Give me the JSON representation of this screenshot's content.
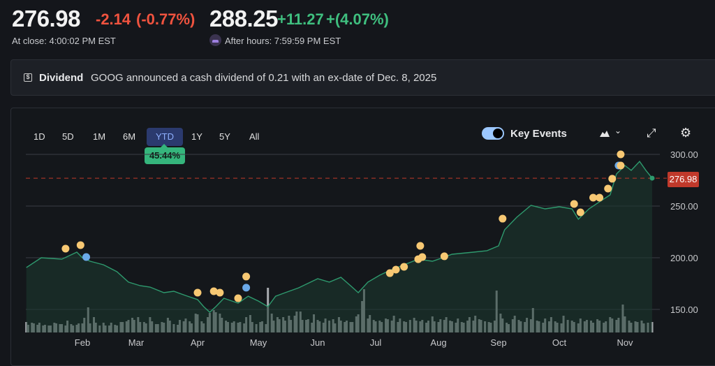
{
  "quote": {
    "close_price": "276.98",
    "close_change": "-2.14",
    "close_change_pct": "(-0.77%)",
    "close_label": "At close: 4:00:02 PM EST",
    "after_price": "288.25",
    "after_change": "+11.27",
    "after_change_pct": "+(4.07%)",
    "after_label": "After hours: 7:59:59 PM EST"
  },
  "banner": {
    "icon": "dollar-icon",
    "title": "Dividend",
    "text": "GOOG announced a cash dividend of 0.21 with an ex-date of Dec. 8, 2025"
  },
  "ranges": [
    "1D",
    "5D",
    "1M",
    "6M",
    "YTD",
    "1Y",
    "5Y",
    "All"
  ],
  "selected_range": "YTD",
  "range_return": "45.44%",
  "controls": {
    "key_events_label": "Key Events",
    "key_events_on": true,
    "chart_type_icon": "mountain-chart-icon",
    "expand_icon": "expand-icon",
    "settings_icon": "gear-icon"
  },
  "colors": {
    "line": "#2e9a6e",
    "up": "#3fbf7f",
    "down": "#f0533f",
    "event": "#f7c873",
    "event_alt": "#6aa8e8",
    "last_price": "#c0392b"
  },
  "chart_data": {
    "type": "line",
    "ylim": [
      130,
      310
    ],
    "yticks": [
      "300.00",
      "250.00",
      "200.00",
      "150.00"
    ],
    "ytick_values": [
      300,
      250,
      200,
      150
    ],
    "xticks": [
      "Feb",
      "Mar",
      "Apr",
      "May",
      "Jun",
      "Jul",
      "Aug",
      "Sep",
      "Oct",
      "Nov"
    ],
    "last_price": "276.98",
    "price": [
      [
        "2025-01-02",
        190.5
      ],
      [
        "2025-01-10",
        200
      ],
      [
        "2025-01-21",
        198.6
      ],
      [
        "2025-01-29",
        205.4
      ],
      [
        "2025-02-01",
        200
      ],
      [
        "2025-02-05",
        196.6
      ],
      [
        "2025-02-12",
        193.2
      ],
      [
        "2025-02-19",
        186.5
      ],
      [
        "2025-02-25",
        176.4
      ],
      [
        "2025-03-03",
        173
      ],
      [
        "2025-03-08",
        171.6
      ],
      [
        "2025-03-15",
        166.2
      ],
      [
        "2025-03-20",
        167.6
      ],
      [
        "2025-03-27",
        162.8
      ],
      [
        "2025-04-01",
        159.5
      ],
      [
        "2025-04-04",
        152.7
      ],
      [
        "2025-04-07",
        147.3
      ],
      [
        "2025-04-10",
        152.7
      ],
      [
        "2025-04-14",
        160.8
      ],
      [
        "2025-04-21",
        156.1
      ],
      [
        "2025-04-26",
        162.8
      ],
      [
        "2025-05-01",
        158.1
      ],
      [
        "2025-05-06",
        152.7
      ],
      [
        "2025-05-10",
        162.8
      ],
      [
        "2025-05-15",
        166.2
      ],
      [
        "2025-05-22",
        170.9
      ],
      [
        "2025-06-01",
        179.7
      ],
      [
        "2025-06-07",
        176.4
      ],
      [
        "2025-06-13",
        181.1
      ],
      [
        "2025-06-18",
        173
      ],
      [
        "2025-06-22",
        166.2
      ],
      [
        "2025-06-27",
        176.4
      ],
      [
        "2025-07-03",
        183.1
      ],
      [
        "2025-07-08",
        187.8
      ],
      [
        "2025-07-15",
        193.2
      ],
      [
        "2025-07-22",
        198.6
      ],
      [
        "2025-07-29",
        196.6
      ],
      [
        "2025-08-01",
        198.6
      ],
      [
        "2025-08-08",
        203.4
      ],
      [
        "2025-08-19",
        205.4
      ],
      [
        "2025-08-26",
        206.8
      ],
      [
        "2025-09-01",
        211.5
      ],
      [
        "2025-09-04",
        227
      ],
      [
        "2025-09-10",
        239.2
      ],
      [
        "2025-09-17",
        250.7
      ],
      [
        "2025-09-24",
        247.3
      ],
      [
        "2025-10-01",
        249.3
      ],
      [
        "2025-10-07",
        247.3
      ],
      [
        "2025-10-10",
        237.2
      ],
      [
        "2025-10-15",
        247.3
      ],
      [
        "2025-10-20",
        254.1
      ],
      [
        "2025-10-25",
        260.8
      ],
      [
        "2025-10-28",
        281.1
      ],
      [
        "2025-11-01",
        289.2
      ],
      [
        "2025-11-04",
        284.5
      ],
      [
        "2025-11-08",
        293.2
      ],
      [
        "2025-11-11",
        284.5
      ],
      [
        "2025-11-14",
        276.98
      ]
    ],
    "events": [
      [
        "2025-01-23",
        208.8,
        "earnings"
      ],
      [
        "2025-01-31",
        212.2,
        "earnings"
      ],
      [
        "2025-02-03",
        200.7,
        "dividend"
      ],
      [
        "2025-04-01",
        166.2,
        "earnings"
      ],
      [
        "2025-04-09",
        167.6,
        "earnings"
      ],
      [
        "2025-04-12",
        166.2,
        "earnings"
      ],
      [
        "2025-04-21",
        160.8,
        "earnings"
      ],
      [
        "2025-04-25",
        181.8,
        "earnings"
      ],
      [
        "2025-04-25",
        171,
        "dividend"
      ],
      [
        "2025-07-08",
        185.1,
        "earnings"
      ],
      [
        "2025-07-11",
        188.5,
        "earnings"
      ],
      [
        "2025-07-15",
        191.2,
        "earnings"
      ],
      [
        "2025-07-22",
        198.6,
        "earnings"
      ],
      [
        "2025-07-23",
        211.5,
        "earnings"
      ],
      [
        "2025-07-24",
        200.7,
        "earnings"
      ],
      [
        "2025-08-04",
        201.4,
        "earnings"
      ],
      [
        "2025-09-03",
        237.8,
        "earnings"
      ],
      [
        "2025-10-08",
        252,
        "earnings"
      ],
      [
        "2025-10-11",
        243.9,
        "earnings"
      ],
      [
        "2025-10-17",
        258.1,
        "earnings"
      ],
      [
        "2025-10-20",
        258.1,
        "earnings"
      ],
      [
        "2025-10-24",
        266.9,
        "earnings"
      ],
      [
        "2025-10-26",
        276.4,
        "earnings"
      ],
      [
        "2025-10-29",
        289.2,
        "dividend"
      ],
      [
        "2025-10-30",
        289.2,
        "earnings"
      ],
      [
        "2025-10-30",
        300,
        "earnings"
      ]
    ],
    "volume": [
      15,
      11,
      14,
      13,
      11,
      14,
      10,
      11,
      10,
      10,
      14,
      13,
      12,
      12,
      10,
      17,
      12,
      10,
      11,
      13,
      13,
      21,
      36,
      13,
      22,
      14,
      10,
      14,
      10,
      10,
      14,
      11,
      10,
      15,
      15,
      16,
      18,
      21,
      18,
      22,
      15,
      15,
      13,
      22,
      16,
      12,
      12,
      15,
      14,
      21,
      17,
      12,
      11,
      18,
      16,
      20,
      16,
      13,
      27,
      26,
      16,
      13,
      22,
      28,
      32,
      29,
      27,
      21,
      17,
      15,
      14,
      16,
      14,
      15,
      13,
      22,
      25,
      15,
      12,
      15,
      16,
      12,
      64,
      27,
      17,
      22,
      19,
      22,
      17,
      24,
      18,
      24,
      30,
      30,
      18,
      18,
      19,
      14,
      26,
      18,
      16,
      14,
      20,
      17,
      19,
      13,
      22,
      17,
      15,
      17,
      15,
      15,
      23,
      26,
      45,
      62,
      20,
      25,
      18,
      16,
      17,
      15,
      20,
      19,
      17,
      24,
      15,
      20,
      16,
      15,
      18,
      21,
      17,
      16,
      18,
      14,
      17,
      23,
      16,
      15,
      19,
      18,
      22,
      17,
      16,
      14,
      20,
      15,
      14,
      17,
      22,
      17,
      24,
      19,
      18,
      16,
      15,
      14,
      17,
      60,
      27,
      20,
      14,
      12,
      19,
      24,
      18,
      16,
      15,
      21,
      19,
      35,
      17,
      16,
      14,
      20,
      16,
      22,
      16,
      14,
      13,
      24,
      18,
      17,
      15,
      13,
      20,
      16,
      18,
      17,
      14,
      19,
      17,
      14,
      16,
      22,
      20,
      18,
      21,
      40,
      23,
      17,
      14,
      16,
      15,
      17,
      13,
      14,
      15
    ]
  }
}
